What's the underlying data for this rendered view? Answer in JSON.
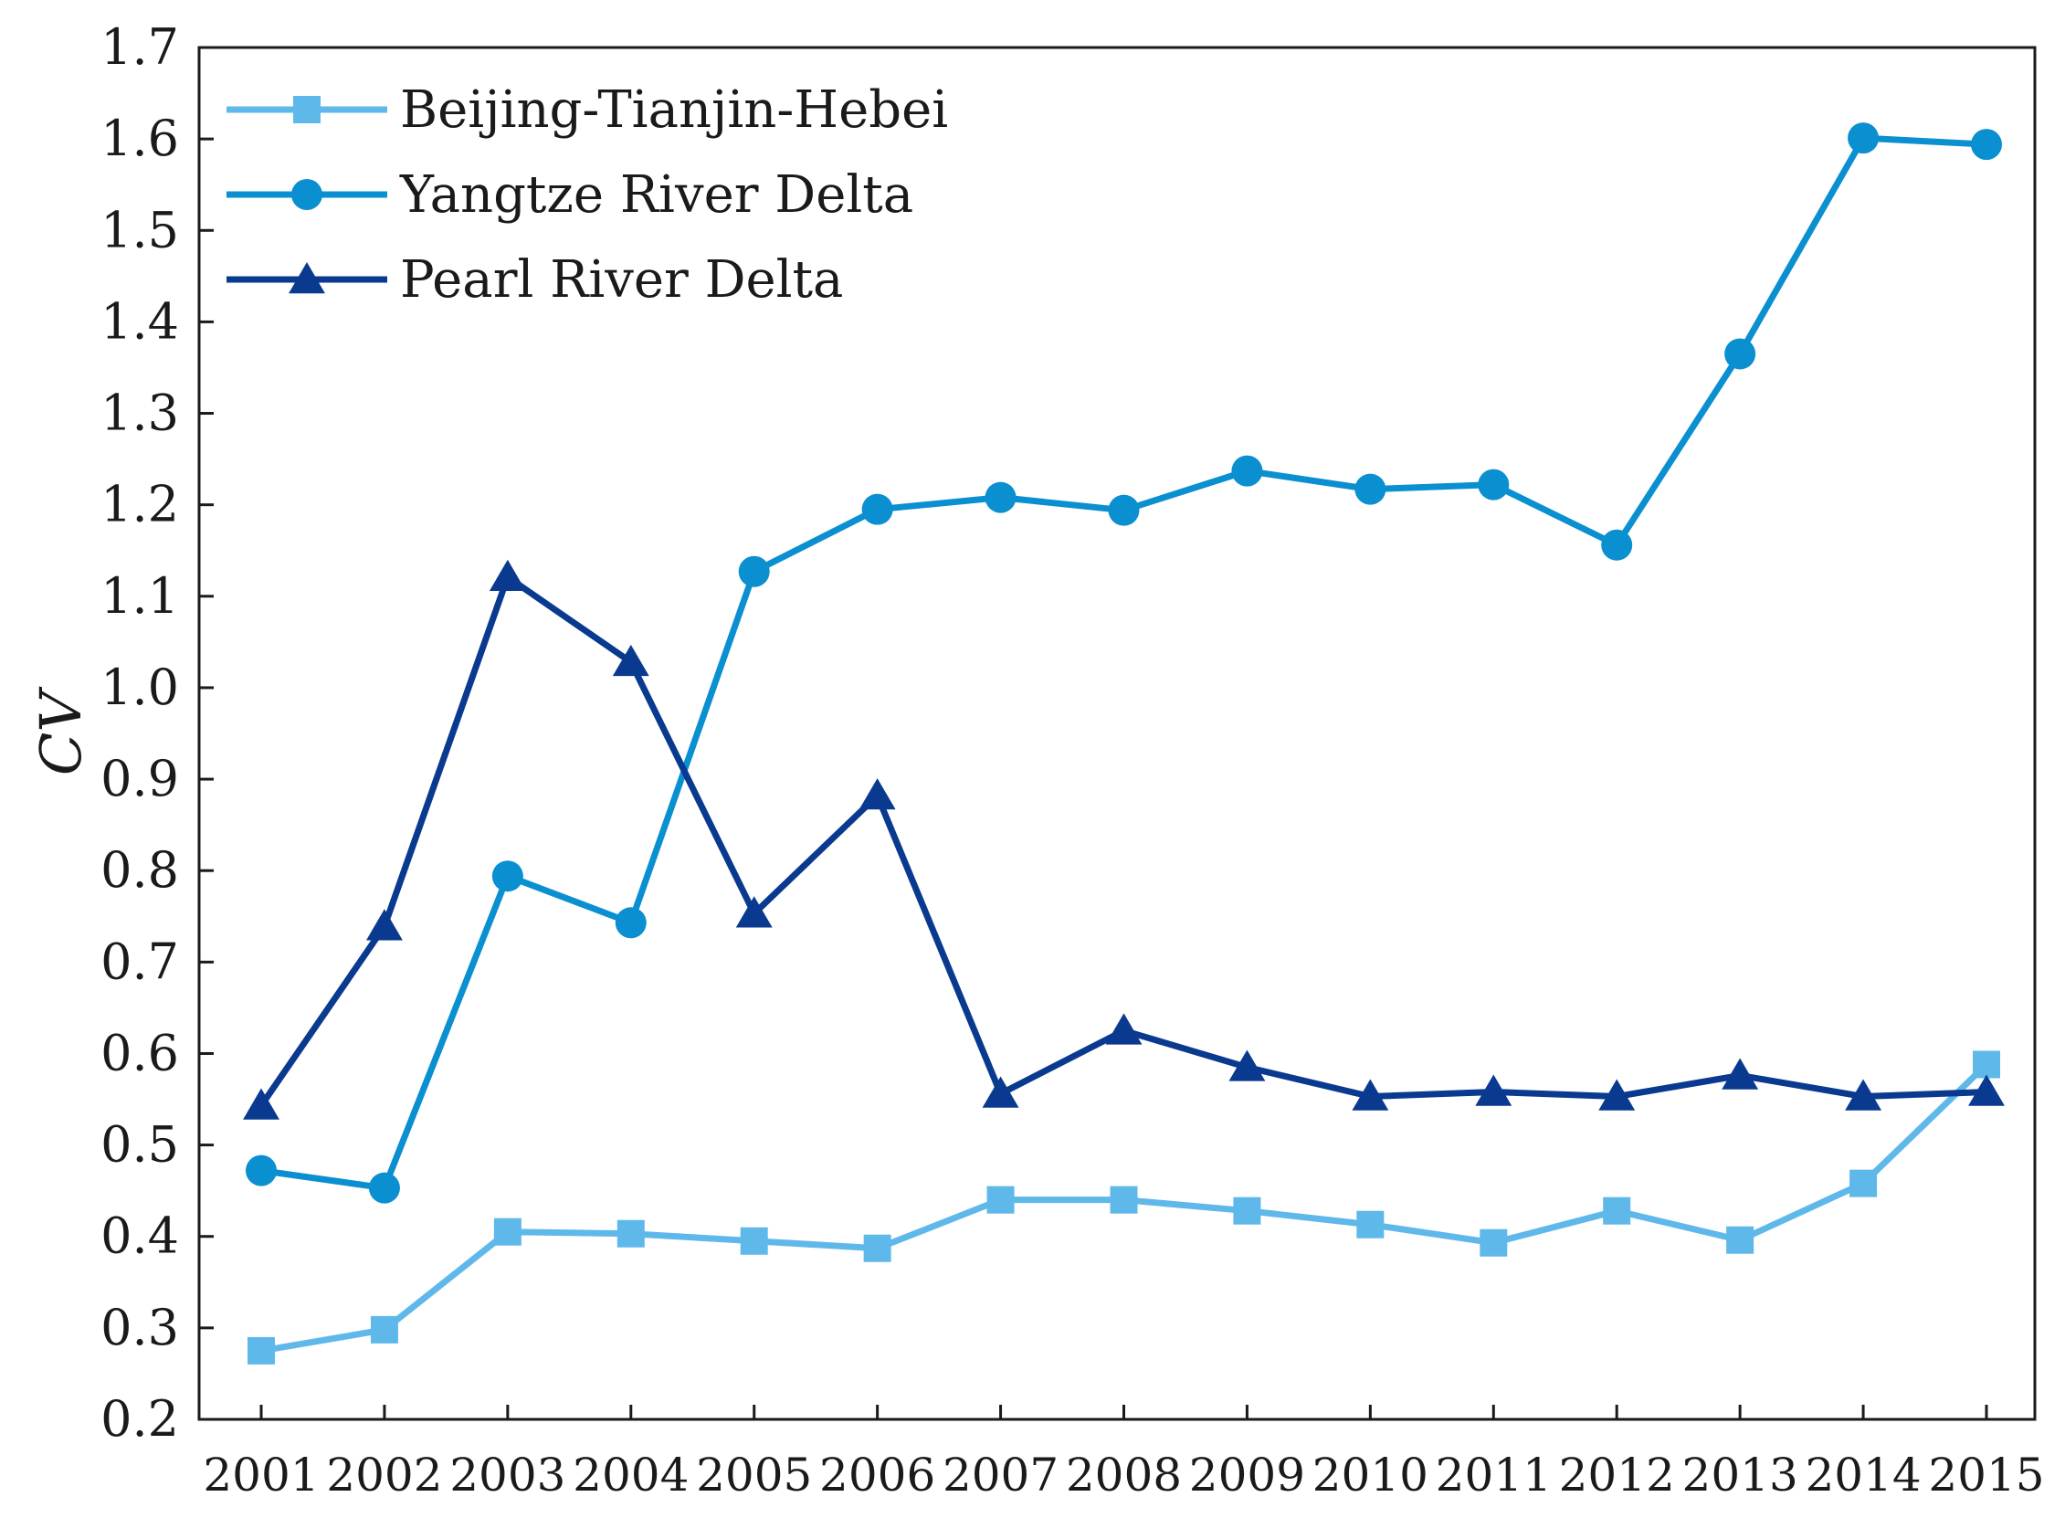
{
  "chart_data": {
    "type": "line",
    "title": "",
    "xlabel": "",
    "ylabel": "CV",
    "ylim": [
      0.2,
      1.7
    ],
    "yticks": [
      0.2,
      0.3,
      0.4,
      0.5,
      0.6,
      0.7,
      0.8,
      0.9,
      1.0,
      1.1,
      1.2,
      1.3,
      1.4,
      1.5,
      1.6,
      1.7
    ],
    "ytick_labels": [
      "0.2",
      "0.3",
      "0.4",
      "0.5",
      "0.6",
      "0.7",
      "0.8",
      "0.9",
      "1.0",
      "1.1",
      "1.2",
      "1.3",
      "1.4",
      "1.5",
      "1.6",
      "1.7"
    ],
    "categories": [
      "2001",
      "2002",
      "2003",
      "2004",
      "2005",
      "2006",
      "2007",
      "2008",
      "2009",
      "2010",
      "2011",
      "2012",
      "2013",
      "2014",
      "2015"
    ],
    "grid": false,
    "legend_position": "top-left",
    "series": [
      {
        "name": "Beijing-Tianjin-Hebei",
        "marker": "square",
        "color": "#5fb8ea",
        "values": [
          0.275,
          0.298,
          0.405,
          0.403,
          0.395,
          0.387,
          0.44,
          0.44,
          0.428,
          0.413,
          0.393,
          0.428,
          0.396,
          0.458,
          0.588
        ]
      },
      {
        "name": "Yangtze River Delta",
        "marker": "circle",
        "color": "#0a8fd0",
        "values": [
          0.472,
          0.453,
          0.794,
          0.743,
          1.127,
          1.195,
          1.208,
          1.194,
          1.237,
          1.217,
          1.222,
          1.156,
          1.365,
          1.601,
          1.594
        ]
      },
      {
        "name": "Pearl River Delta",
        "marker": "triangle",
        "color": "#0a3a8f",
        "values": [
          0.543,
          0.739,
          1.121,
          1.028,
          0.753,
          0.882,
          0.556,
          0.625,
          0.585,
          0.553,
          0.558,
          0.553,
          0.576,
          0.553,
          0.558
        ]
      }
    ]
  }
}
